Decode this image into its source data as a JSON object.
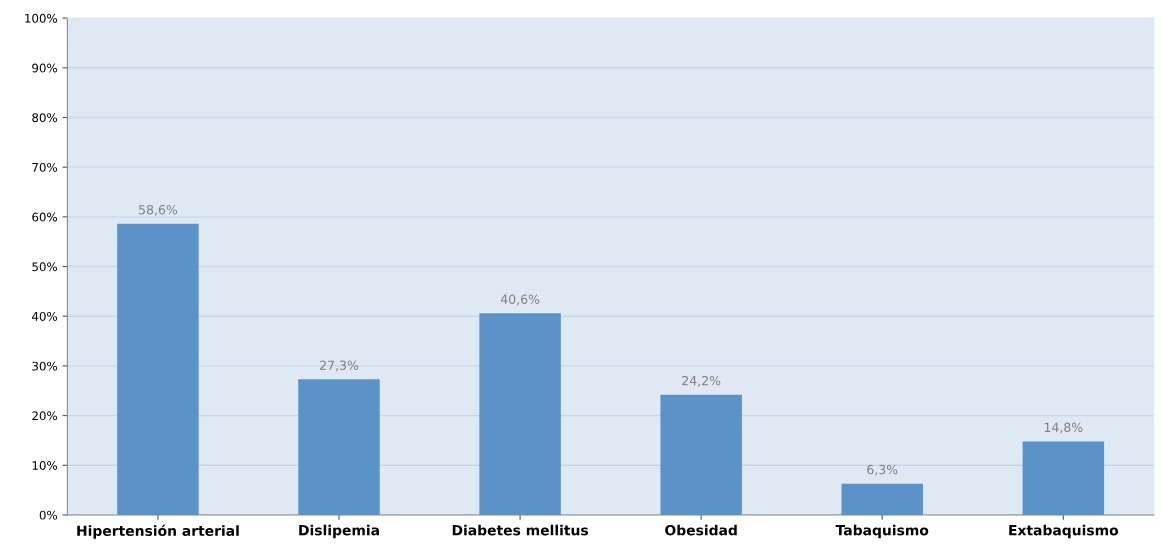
{
  "chart_data": {
    "type": "bar",
    "categories": [
      "Hipertensión arterial",
      "Dislipemia",
      "Diabetes mellitus",
      "Obesidad",
      "Tabaquismo",
      "Extabaquismo"
    ],
    "values": [
      58.6,
      27.3,
      40.6,
      24.2,
      6.3,
      14.8
    ],
    "value_labels": [
      "58,6%",
      "27,3%",
      "40,6%",
      "24,2%",
      "6,3%",
      "14,8%"
    ],
    "color": "#5b93c8",
    "ylim": [
      0,
      100
    ],
    "yticks": [
      {
        "value": 0,
        "label": "0%"
      },
      {
        "value": 10,
        "label": "10%"
      },
      {
        "value": 20,
        "label": "20%"
      },
      {
        "value": 30,
        "label": "30%"
      },
      {
        "value": 40,
        "label": "40%"
      },
      {
        "value": 50,
        "label": "50%"
      },
      {
        "value": 60,
        "label": "60%"
      },
      {
        "value": 70,
        "label": "70%"
      },
      {
        "value": 80,
        "label": "80%"
      },
      {
        "value": 90,
        "label": "90%"
      },
      {
        "value": 100,
        "label": "100%"
      }
    ],
    "grid": "y",
    "legend": false
  }
}
